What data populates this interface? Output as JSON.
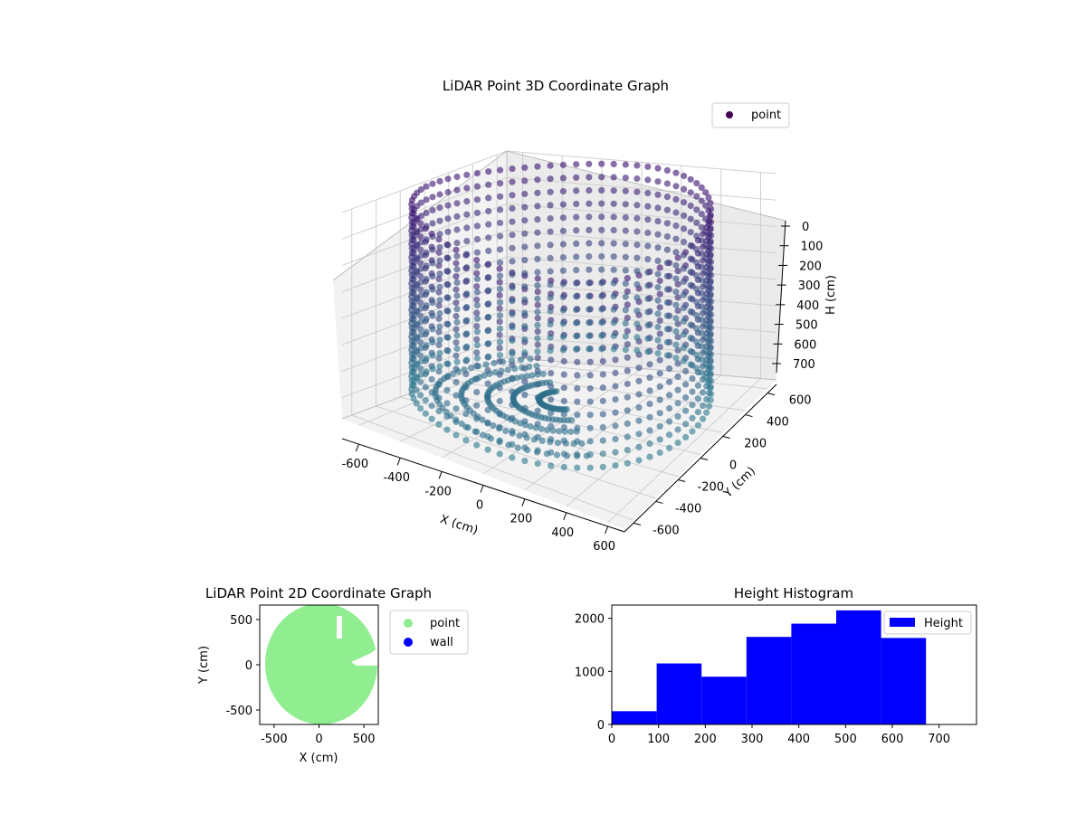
{
  "chart_data": [
    {
      "type": "scatter3d",
      "title": "LiDAR Point 3D Coordinate Graph",
      "xlabel": "X (cm)",
      "ylabel": "Y (cm)",
      "zlabel": "H (cm)",
      "x_ticks": [
        -600,
        -400,
        -200,
        0,
        200,
        400,
        600
      ],
      "y_ticks": [
        -600,
        -400,
        -200,
        0,
        200,
        400,
        600
      ],
      "z_ticks": [
        0,
        100,
        200,
        300,
        400,
        500,
        600,
        700
      ],
      "xlim": [
        -680,
        680
      ],
      "ylim": [
        -680,
        680
      ],
      "zlim": [
        0,
        780
      ],
      "z_inverted": true,
      "legend": [
        "point"
      ],
      "legend_position": "upper-right",
      "colormap": "viridis",
      "series": [
        {
          "name": "point",
          "description_of_shape": "ring wall",
          "radius": 640,
          "h_range": [
            0,
            700
          ],
          "color_top": "#3b0f70",
          "color_bottom": "#2a788e"
        }
      ]
    },
    {
      "type": "scatter",
      "title": "LiDAR Point 2D Coordinate Graph",
      "xlabel": "X (cm)",
      "ylabel": "Y (cm)",
      "x_ticks": [
        -500,
        0,
        500
      ],
      "y_ticks": [
        -500,
        0,
        500
      ],
      "xlim": [
        -660,
        660
      ],
      "ylim": [
        -660,
        660
      ],
      "legend_position": "outside-right",
      "series": [
        {
          "name": "point",
          "color": "#90ee90",
          "radius": 610
        },
        {
          "name": "wall",
          "color": "#0000ff"
        }
      ]
    },
    {
      "type": "histogram",
      "title": "Height Histogram",
      "xlabel": "",
      "ylabel": "",
      "bin_edges": [
        0,
        96,
        192,
        288,
        384,
        480,
        576,
        672
      ],
      "values": [
        250,
        1150,
        900,
        1650,
        1900,
        2150,
        1630
      ],
      "x_ticks": [
        0,
        100,
        200,
        300,
        400,
        500,
        600,
        700
      ],
      "y_ticks": [
        0,
        1000,
        2000
      ],
      "xlim": [
        0,
        780
      ],
      "ylim": [
        0,
        2250
      ],
      "legend": [
        "Height"
      ],
      "legend_position": "upper-right",
      "color": "#0000ff"
    }
  ]
}
